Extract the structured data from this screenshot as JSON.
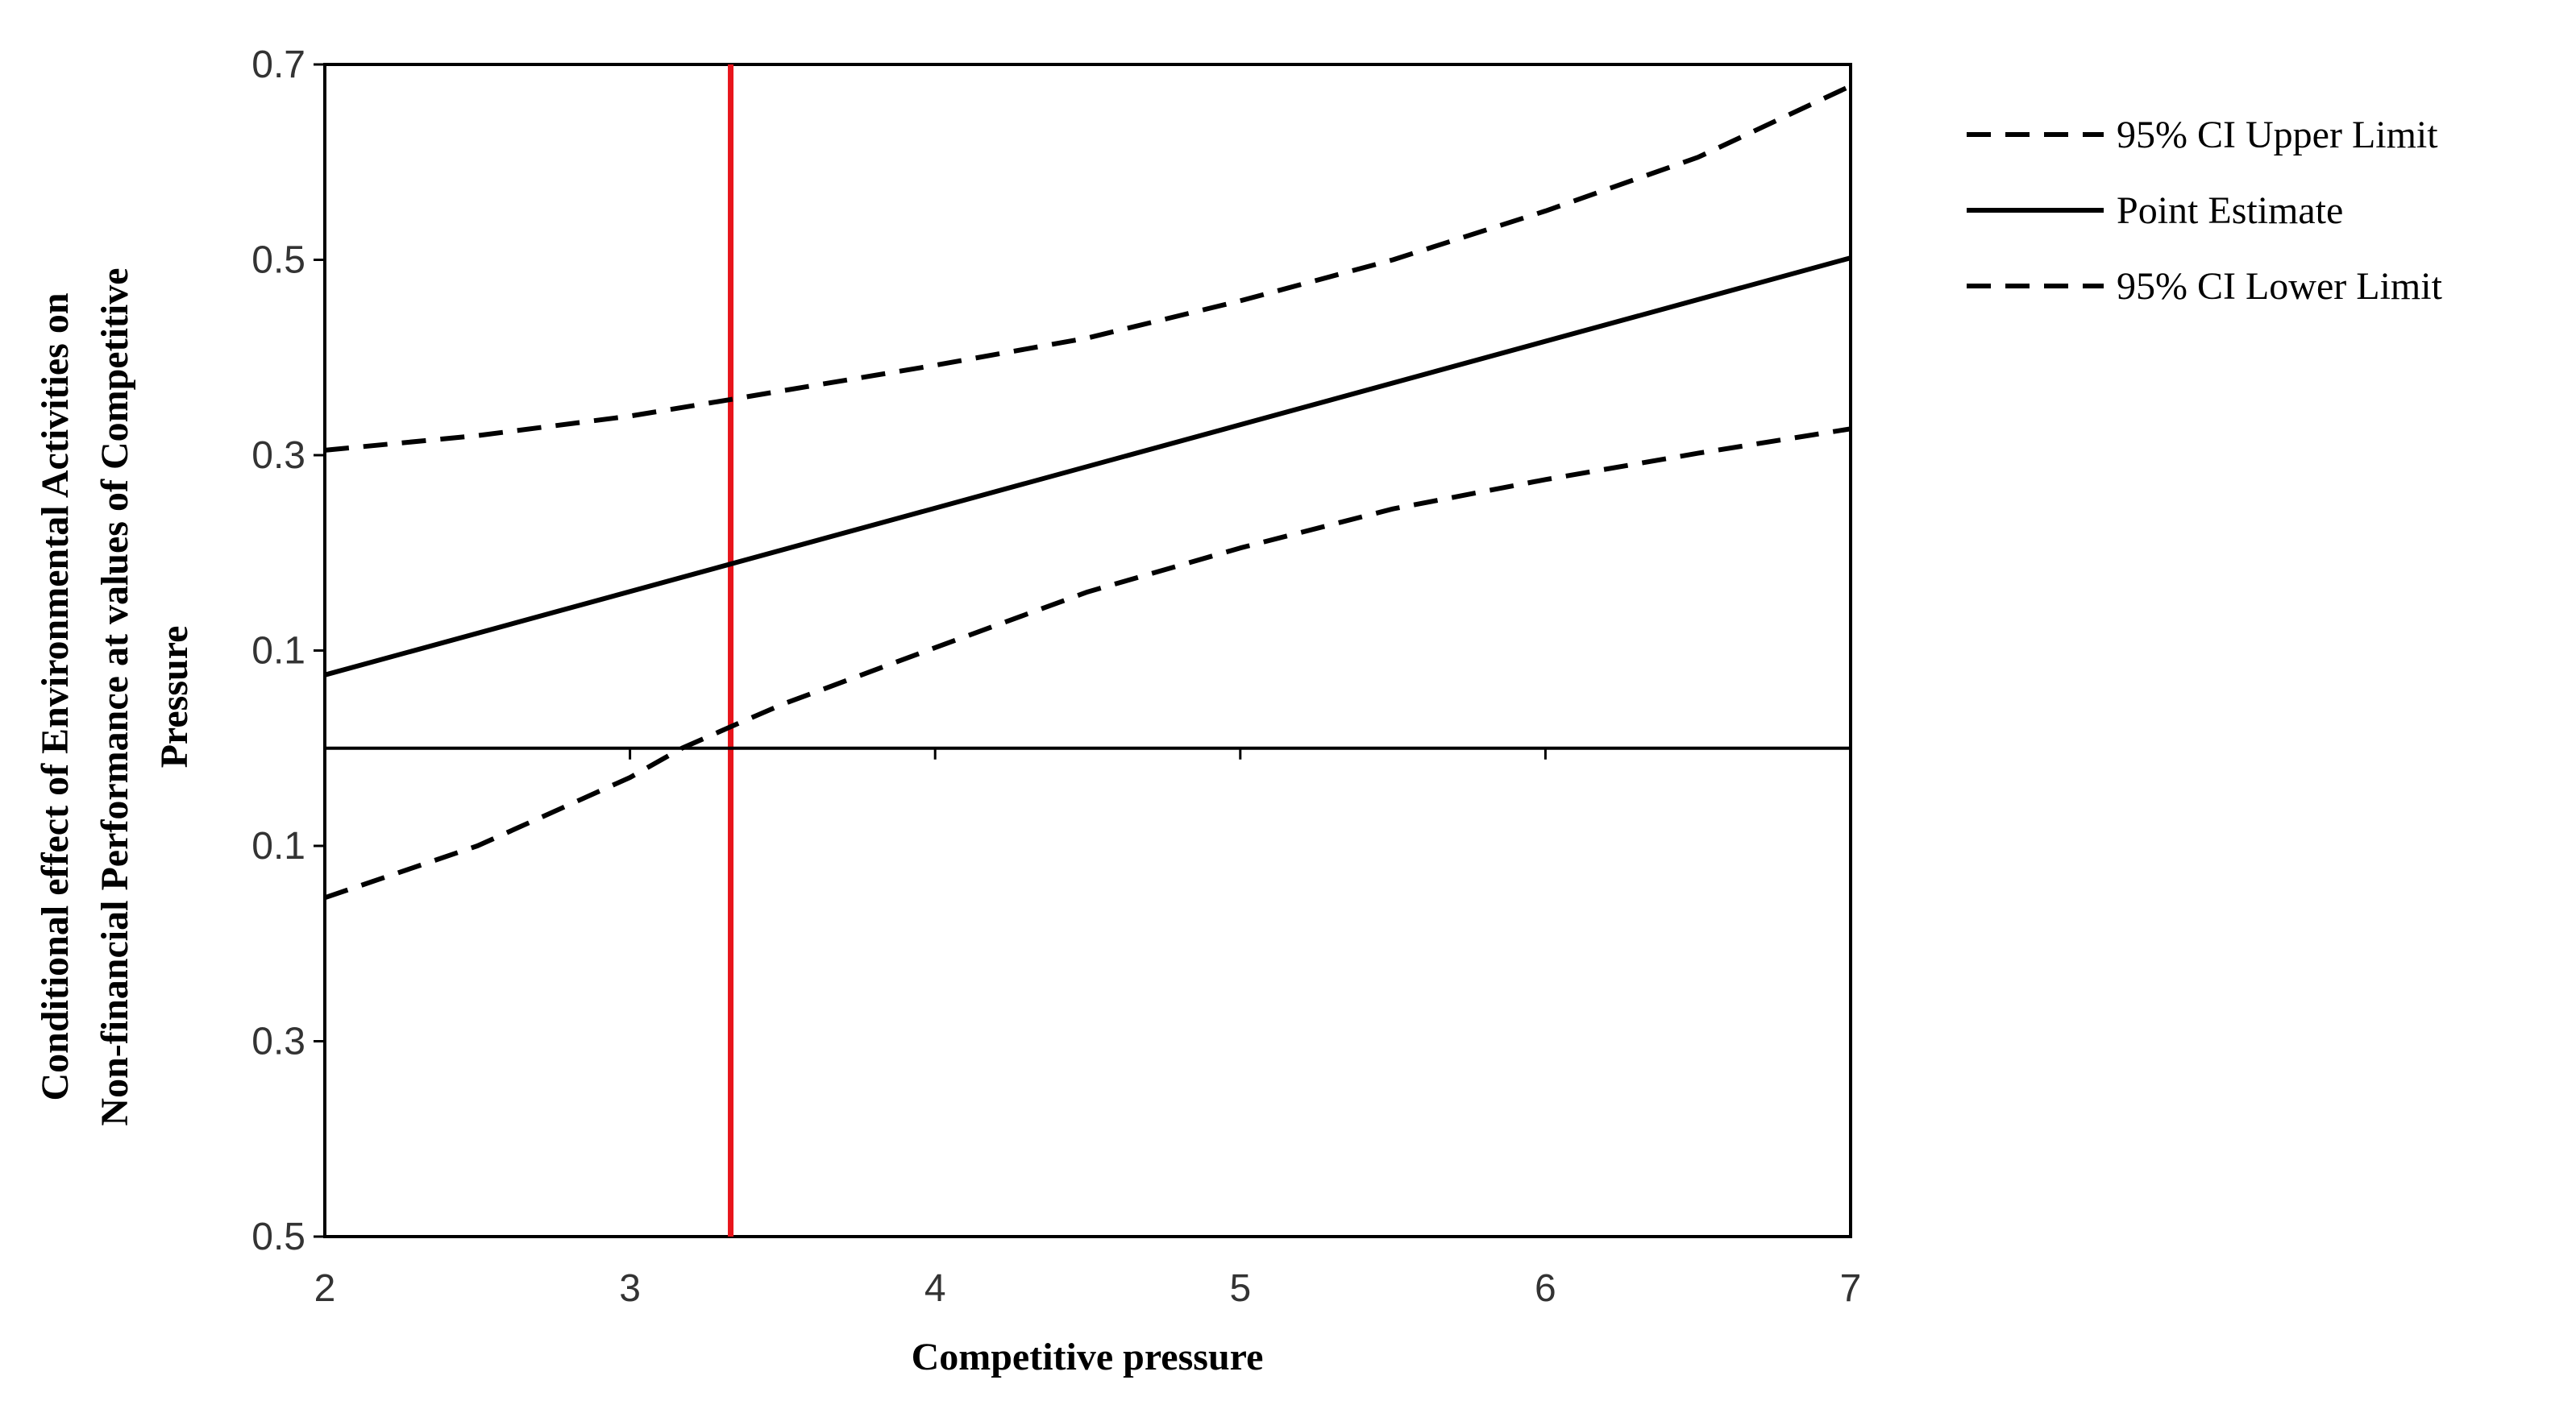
{
  "chart_data": {
    "type": "line",
    "xlabel": "Competitive pressure",
    "ylabel_lines": [
      "Conditional effect of Environmental Activities on",
      "Non-financial Performance at values of Competitive",
      "Pressure"
    ],
    "xlim": [
      2,
      7
    ],
    "ylim": [
      -0.5,
      0.7
    ],
    "x_ticks": [
      "2",
      "3",
      "4",
      "5",
      "6",
      "7"
    ],
    "y_ticks": [
      {
        "value": 0.7,
        "label": "0.7"
      },
      {
        "value": 0.5,
        "label": "0.5"
      },
      {
        "value": 0.3,
        "label": "0.3"
      },
      {
        "value": 0.1,
        "label": "0.1"
      },
      {
        "value": -0.1,
        "label": "0.1"
      },
      {
        "value": -0.3,
        "label": "0.3"
      },
      {
        "value": -0.5,
        "label": "0.5"
      }
    ],
    "grid": false,
    "legend_position": "right",
    "series": [
      {
        "name": "95% CI Upper Limit",
        "style": "dashed",
        "color": "#000000",
        "x": [
          2.0,
          2.5,
          3.0,
          3.33,
          3.5,
          4.0,
          4.5,
          5.0,
          5.5,
          6.0,
          6.5,
          7.0
        ],
        "y": [
          0.305,
          0.32,
          0.34,
          0.357,
          0.366,
          0.392,
          0.42,
          0.458,
          0.5,
          0.55,
          0.605,
          0.678
        ]
      },
      {
        "name": "Point Estimate",
        "style": "solid",
        "color": "#000000",
        "x": [
          2.0,
          7.0
        ],
        "y": [
          0.075,
          0.502
        ]
      },
      {
        "name": "95% CI Lower Limit",
        "style": "dashed",
        "color": "#000000",
        "x": [
          2.0,
          2.5,
          3.0,
          3.17,
          3.33,
          3.5,
          4.0,
          4.5,
          5.0,
          5.5,
          6.0,
          6.5,
          7.0
        ],
        "y": [
          -0.153,
          -0.1,
          -0.03,
          0.0,
          0.022,
          0.045,
          0.103,
          0.16,
          0.205,
          0.245,
          0.275,
          0.302,
          0.327
        ]
      }
    ],
    "reference_lines": [
      {
        "orientation": "vertical",
        "x": 3.33,
        "color": "#e8141b"
      },
      {
        "orientation": "horizontal",
        "y": 0,
        "color": "#000000"
      }
    ]
  }
}
